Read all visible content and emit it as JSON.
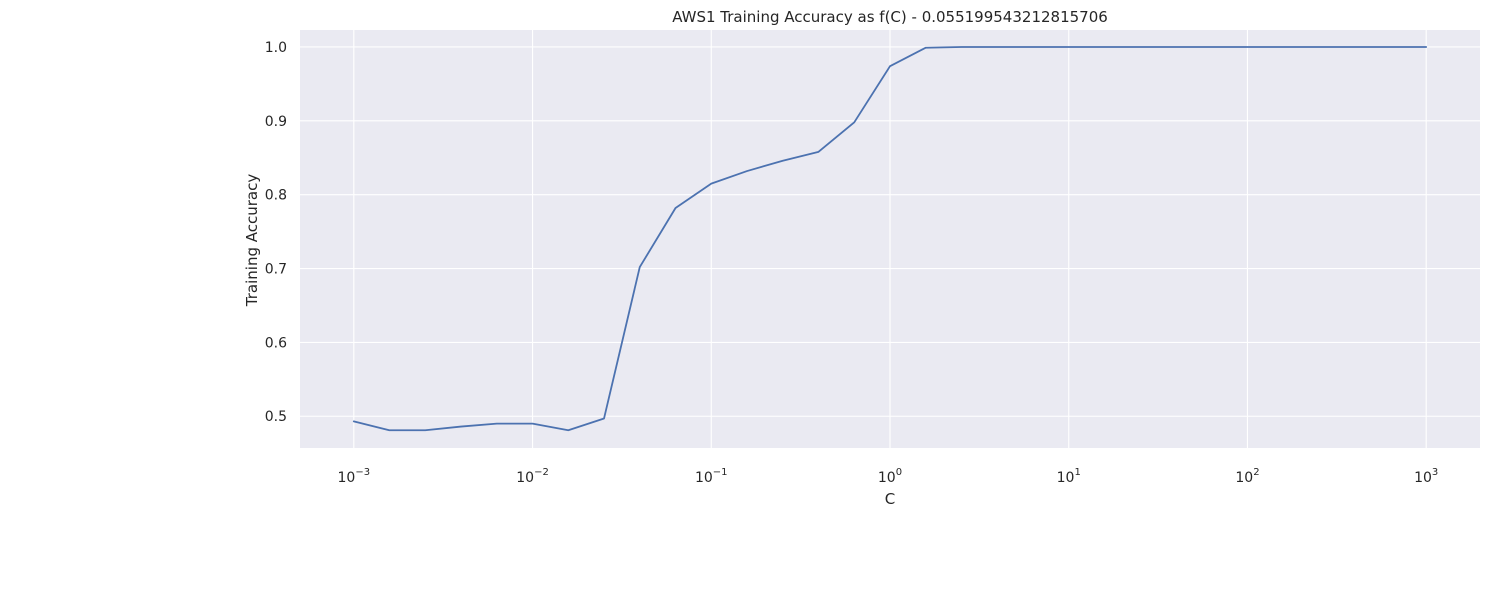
{
  "chart_data": {
    "type": "line",
    "title": "AWS1 Training Accuracy as f(C) - 0.055199543212815706",
    "xlabel": "C",
    "ylabel": "Training Accuracy",
    "x_scale": "log",
    "xlim": [
      0.0005,
      2000
    ],
    "ylim": [
      0.457,
      1.023
    ],
    "grid": true,
    "colors": {
      "background": "#eaeaf2",
      "grid": "#ffffff",
      "series": "#4c72b0",
      "text": "#262626"
    },
    "x_ticks": [
      {
        "base": "10",
        "exp": "−3",
        "value": 0.001
      },
      {
        "base": "10",
        "exp": "−2",
        "value": 0.01
      },
      {
        "base": "10",
        "exp": "−1",
        "value": 0.1
      },
      {
        "base": "10",
        "exp": "0",
        "value": 1
      },
      {
        "base": "10",
        "exp": "1",
        "value": 10
      },
      {
        "base": "10",
        "exp": "2",
        "value": 100
      },
      {
        "base": "10",
        "exp": "3",
        "value": 1000
      }
    ],
    "y_ticks": [
      "0.5",
      "0.6",
      "0.7",
      "0.8",
      "0.9",
      "1.0"
    ],
    "series": [
      {
        "x": [
          0.001,
          0.00158,
          0.00251,
          0.00398,
          0.00631,
          0.01,
          0.01585,
          0.02512,
          0.03981,
          0.0631,
          0.1,
          0.1585,
          0.2512,
          0.3981,
          0.631,
          1,
          1.585,
          2.512,
          3.981,
          6.31,
          10,
          15.85,
          25.12,
          39.81,
          63.1,
          100,
          158.5,
          251.2,
          398.1,
          631,
          1000
        ],
        "y": [
          0.493,
          0.481,
          0.481,
          0.486,
          0.49,
          0.49,
          0.481,
          0.497,
          0.702,
          0.782,
          0.815,
          0.832,
          0.846,
          0.858,
          0.898,
          0.974,
          0.999,
          1.0,
          1.0,
          1.0,
          1.0,
          1.0,
          1.0,
          1.0,
          1.0,
          1.0,
          1.0,
          1.0,
          1.0,
          1.0,
          1.0
        ]
      }
    ]
  }
}
